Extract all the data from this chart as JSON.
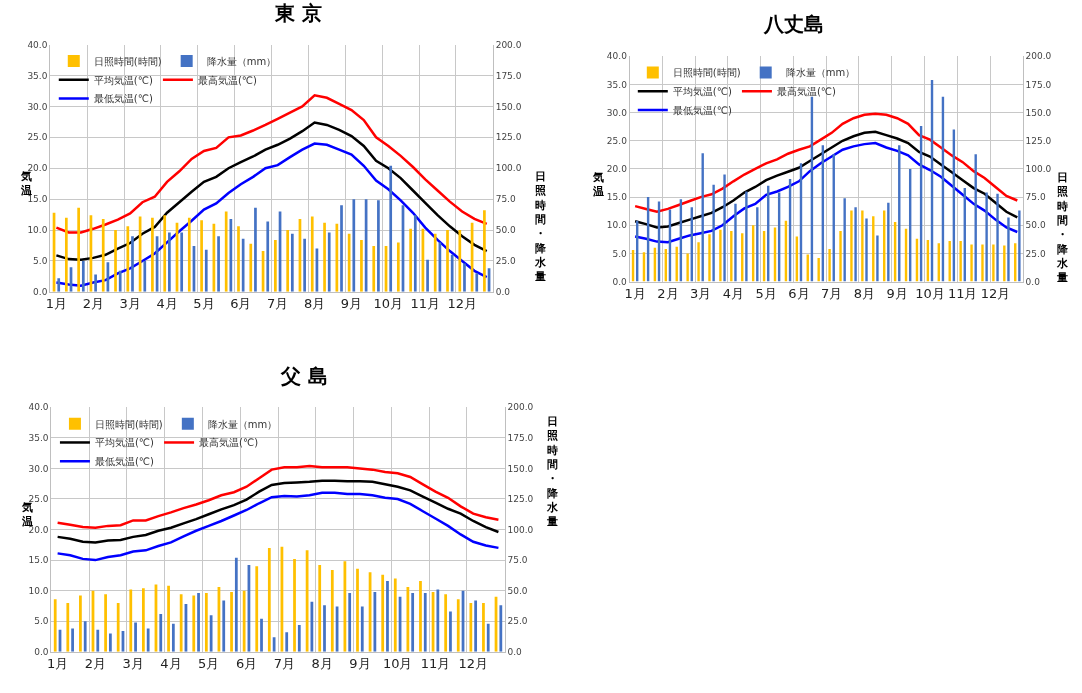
{
  "chart_data": [
    {
      "type": "bar",
      "title": "東 京",
      "ylabel": "気温",
      "y2label": "日照時間・降水量",
      "grid": true,
      "legend": "top left",
      "categories": [
        "1月",
        null,
        null,
        "2月",
        null,
        null,
        "3月",
        null,
        null,
        "4月",
        null,
        null,
        "5月",
        null,
        null,
        "6月",
        null,
        null,
        "7月",
        null,
        null,
        "8月",
        null,
        null,
        "9月",
        null,
        null,
        "10月",
        null,
        null,
        "11月",
        null,
        null,
        "12月",
        null,
        null
      ],
      "ylim": [
        0,
        40
      ],
      "yticks": [
        {
          "value": 0,
          "label": "0.0"
        },
        {
          "value": 5,
          "label": "5.0"
        },
        {
          "value": 10,
          "label": "10.0"
        },
        {
          "value": 15,
          "label": "15.0"
        },
        {
          "value": 20,
          "label": "20.0"
        },
        {
          "value": 25,
          "label": "25.0"
        },
        {
          "value": 30,
          "label": "30.0"
        },
        {
          "value": 35,
          "label": "35.0"
        },
        {
          "value": 40,
          "label": "40.0"
        }
      ],
      "y2lim": [
        0,
        200
      ],
      "y2ticks": [
        {
          "value": 0,
          "label": "0.0"
        },
        {
          "value": 25,
          "label": "25.0"
        },
        {
          "value": 50,
          "label": "50.0"
        },
        {
          "value": 75,
          "label": "75.0"
        },
        {
          "value": 100,
          "label": "100.0"
        },
        {
          "value": 125,
          "label": "125.0"
        },
        {
          "value": 150,
          "label": "150.0"
        },
        {
          "value": 175,
          "label": "175.0"
        },
        {
          "value": 200,
          "label": "200.0"
        }
      ],
      "series": [
        {
          "name": "日照時間(時間)",
          "axis": "y2",
          "color": "#ffc000",
          "values": [
            64,
            60,
            68,
            62,
            59,
            50,
            53,
            61,
            60,
            62,
            56,
            60,
            58,
            55,
            65,
            53,
            39,
            33,
            42,
            50,
            59,
            61,
            56,
            55,
            47,
            42,
            37,
            37,
            40,
            51,
            51,
            47,
            50,
            50,
            56,
            66
          ]
        },
        {
          "name": "降水量（mm）",
          "axis": "y2",
          "color": "#4472c4",
          "values": [
            11,
            20,
            25,
            14,
            24,
            17,
            45,
            25,
            45,
            48,
            48,
            37,
            34,
            45,
            59,
            43,
            68,
            57,
            65,
            47,
            43,
            35,
            48,
            70,
            75,
            75,
            74,
            102,
            70,
            62,
            26,
            40,
            30,
            23,
            15,
            19
          ]
        },
        {
          "name": "平均気温(℃)",
          "type": "line",
          "color": "#000000",
          "values": [
            5.9,
            5.3,
            5.2,
            5.5,
            6.0,
            7.0,
            7.9,
            9.4,
            10.5,
            12.8,
            14.5,
            16.2,
            17.8,
            18.6,
            20.0,
            21.0,
            21.9,
            23.0,
            23.8,
            24.8,
            26,
            27.4,
            27,
            26.2,
            25.2,
            23.6,
            21.2,
            20,
            18.4,
            16.4,
            14.4,
            12.4,
            10.6,
            9,
            7.6,
            6.6
          ]
        },
        {
          "name": "最高気温(℃)",
          "type": "line",
          "color": "#ff0000",
          "values": [
            10.4,
            9.6,
            9.6,
            10.2,
            10.9,
            11.7,
            12.7,
            14.5,
            15.4,
            17.8,
            19.5,
            21.5,
            22.8,
            23.3,
            25.0,
            25.3,
            26.1,
            27.0,
            28.0,
            29.0,
            30,
            31.8,
            31.4,
            30.4,
            29.4,
            27.8,
            25,
            23.6,
            22,
            20.2,
            18.2,
            16.4,
            14.6,
            13,
            11.8,
            11
          ]
        },
        {
          "name": "最低気温(℃)",
          "type": "line",
          "color": "#0000ff",
          "values": [
            1.5,
            1.2,
            1.0,
            1.5,
            1.9,
            3.0,
            3.8,
            5.0,
            6.2,
            8.0,
            9.8,
            11.5,
            13.3,
            14.3,
            16.0,
            17.4,
            18.6,
            20.0,
            20.5,
            21.8,
            23,
            24,
            23.8,
            23,
            22.2,
            20.4,
            18,
            16.6,
            14.8,
            12.8,
            10.4,
            8.4,
            6.6,
            5,
            3.4,
            2.4
          ]
        }
      ]
    },
    {
      "type": "bar",
      "title": "八丈島",
      "ylabel": "気温",
      "y2label": "日照時間・降水量",
      "grid": true,
      "legend": "top left",
      "categories": [
        "1月",
        null,
        null,
        "2月",
        null,
        null,
        "3月",
        null,
        null,
        "4月",
        null,
        null,
        "5月",
        null,
        null,
        "6月",
        null,
        null,
        "7月",
        null,
        null,
        "8月",
        null,
        null,
        "9月",
        null,
        null,
        "10月",
        null,
        null,
        "11月",
        null,
        null,
        "12月",
        null,
        null
      ],
      "ylim": [
        0,
        40
      ],
      "yticks": [
        {
          "value": 0,
          "label": "0.0"
        },
        {
          "value": 5,
          "label": "5.0"
        },
        {
          "value": 10,
          "label": "10.0"
        },
        {
          "value": 15,
          "label": "15.0"
        },
        {
          "value": 20,
          "label": "20.0"
        },
        {
          "value": 25,
          "label": "25.0"
        },
        {
          "value": 30,
          "label": "30.0"
        },
        {
          "value": 35,
          "label": "35.0"
        },
        {
          "value": 40,
          "label": "40.0"
        }
      ],
      "y2lim": [
        0,
        200
      ],
      "y2ticks": [
        {
          "value": 0,
          "label": "0.0"
        },
        {
          "value": 25,
          "label": "25.0"
        },
        {
          "value": 50,
          "label": "50.0"
        },
        {
          "value": 75,
          "label": "75.0"
        },
        {
          "value": 100,
          "label": "100.0"
        },
        {
          "value": 125,
          "label": "125.0"
        },
        {
          "value": 150,
          "label": "150.0"
        },
        {
          "value": 175,
          "label": "175.0"
        },
        {
          "value": 200,
          "label": "200.0"
        }
      ],
      "series": [
        {
          "name": "日照時間(時間)",
          "axis": "y2",
          "color": "#ffc000",
          "values": [
            28,
            26,
            30,
            29,
            31,
            25,
            35,
            42,
            46,
            45,
            43,
            50,
            45,
            48,
            54,
            40,
            24,
            21,
            29,
            45,
            63,
            63,
            58,
            63,
            53,
            47,
            38,
            37,
            34,
            36,
            36,
            33,
            33,
            33,
            32,
            34
          ]
        },
        {
          "name": "降水量（mm）",
          "axis": "y2",
          "color": "#4472c4",
          "values": [
            54,
            75,
            71,
            64,
            73,
            66,
            114,
            86,
            95,
            69,
            80,
            66,
            85,
            79,
            91,
            105,
            164,
            121,
            113,
            74,
            66,
            56,
            41,
            70,
            121,
            100,
            138,
            179,
            164,
            135,
            83,
            113,
            79,
            78,
            57,
            63
          ]
        },
        {
          "name": "平均気温(℃)",
          "type": "line",
          "color": "#000000",
          "values": [
            10.7,
            10.2,
            9.6,
            9.8,
            10.4,
            11.0,
            11.6,
            12.2,
            13.2,
            14.4,
            15.8,
            16.8,
            18.0,
            18.8,
            19.5,
            20.2,
            21.4,
            22.6,
            23.8,
            25,
            25.8,
            26.4,
            26.6,
            26,
            25.4,
            24.6,
            23,
            22.2,
            20.8,
            19.4,
            18,
            16.6,
            15.6,
            14,
            12.4,
            11.4
          ]
        },
        {
          "name": "最高気温(℃)",
          "type": "line",
          "color": "#ff0000",
          "values": [
            13.4,
            12.9,
            12.4,
            12.9,
            13.6,
            14.3,
            15.0,
            15.5,
            16.5,
            17.8,
            19.0,
            20.0,
            21.0,
            21.7,
            22.7,
            23.4,
            24.0,
            25.2,
            26.4,
            28,
            29,
            29.6,
            29.8,
            29.6,
            29,
            28,
            26,
            25.2,
            23.8,
            22.4,
            21.2,
            19.6,
            18.4,
            16.8,
            15.2,
            14.4
          ]
        },
        {
          "name": "最低気温(℃)",
          "type": "line",
          "color": "#0000ff",
          "values": [
            8.0,
            7.6,
            7.1,
            7.0,
            7.6,
            8.2,
            8.6,
            9.0,
            10.0,
            11.6,
            13.0,
            13.8,
            15.4,
            16.0,
            16.8,
            17.8,
            19.6,
            21.0,
            22.2,
            23.4,
            24,
            24.4,
            24.6,
            23.8,
            23.2,
            22.4,
            20.8,
            19.8,
            18.6,
            17,
            15.4,
            13.8,
            12.6,
            11,
            9.6,
            8.8
          ]
        }
      ]
    },
    {
      "type": "bar",
      "title": "父 島",
      "ylabel": "気温",
      "y2label": "日照時間・降水量",
      "grid": true,
      "legend": "top left",
      "categories": [
        "1月",
        null,
        null,
        "2月",
        null,
        null,
        "3月",
        null,
        null,
        "4月",
        null,
        null,
        "5月",
        null,
        null,
        "6月",
        null,
        null,
        "7月",
        null,
        null,
        "8月",
        null,
        null,
        "9月",
        null,
        null,
        "10月",
        null,
        null,
        "11月",
        null,
        null,
        "12月",
        null,
        null
      ],
      "ylim": [
        0,
        40
      ],
      "yticks": [
        {
          "value": 0,
          "label": "0.0"
        },
        {
          "value": 5,
          "label": "5.0"
        },
        {
          "value": 10,
          "label": "10.0"
        },
        {
          "value": 15,
          "label": "15.0"
        },
        {
          "value": 20,
          "label": "20.0"
        },
        {
          "value": 25,
          "label": "25.0"
        },
        {
          "value": 30,
          "label": "30.0"
        },
        {
          "value": 35,
          "label": "35.0"
        },
        {
          "value": 40,
          "label": "40.0"
        }
      ],
      "y2lim": [
        0,
        200
      ],
      "y2ticks": [
        {
          "value": 0,
          "label": "0.0"
        },
        {
          "value": 25,
          "label": "25.0"
        },
        {
          "value": 50,
          "label": "50.0"
        },
        {
          "value": 75,
          "label": "75.0"
        },
        {
          "value": 100,
          "label": "100.0"
        },
        {
          "value": 125,
          "label": "125.0"
        },
        {
          "value": 150,
          "label": "150.0"
        },
        {
          "value": 175,
          "label": "175.0"
        },
        {
          "value": 200,
          "label": "200.0"
        }
      ],
      "series": [
        {
          "name": "日照時間(時間)",
          "axis": "y2",
          "color": "#ffc000",
          "values": [
            43,
            40,
            46,
            50,
            47,
            40,
            51,
            52,
            55,
            54,
            47,
            46,
            48,
            53,
            49,
            50,
            70,
            85,
            86,
            76,
            83,
            71,
            67,
            74,
            68,
            65,
            63,
            60,
            53,
            58,
            49,
            47,
            43,
            40,
            40,
            45
          ]
        },
        {
          "name": "降水量（mm）",
          "axis": "y2",
          "color": "#4472c4",
          "values": [
            18,
            19,
            25,
            18,
            15,
            17,
            24,
            19,
            31,
            23,
            39,
            48,
            30,
            42,
            77,
            71,
            27,
            12,
            16,
            22,
            41,
            38,
            37,
            48,
            37,
            49,
            58,
            45,
            48,
            48,
            51,
            33,
            50,
            42,
            23,
            38
          ]
        },
        {
          "name": "平均気温(℃)",
          "type": "line",
          "color": "#000000",
          "values": [
            18.8,
            18.5,
            18.0,
            17.9,
            18.2,
            18.3,
            18.8,
            19.1,
            19.8,
            20.3,
            21.0,
            21.7,
            22.5,
            23.3,
            24.0,
            24.9,
            26.2,
            27.3,
            27.6,
            27.7,
            27.8,
            28,
            28,
            27.9,
            27.9,
            27.8,
            27.4,
            27,
            26.4,
            25.4,
            24.4,
            23.4,
            22.6,
            21.4,
            20.4,
            19.6
          ]
        },
        {
          "name": "最高気温(℃)",
          "type": "line",
          "color": "#ff0000",
          "values": [
            21.1,
            20.8,
            20.4,
            20.3,
            20.6,
            20.7,
            21.5,
            21.5,
            22.2,
            22.8,
            23.5,
            24.1,
            24.8,
            25.6,
            26.1,
            27.0,
            28.4,
            29.8,
            30.2,
            30.2,
            30.4,
            30.2,
            30.2,
            30.2,
            30,
            29.8,
            29.4,
            29.2,
            28.6,
            27.4,
            26.2,
            25.2,
            23.8,
            22.6,
            22,
            21.6
          ]
        },
        {
          "name": "最低気温(℃)",
          "type": "line",
          "color": "#0000ff",
          "values": [
            16.1,
            15.8,
            15.2,
            15.0,
            15.5,
            15.8,
            16.4,
            16.6,
            17.3,
            17.9,
            18.9,
            19.8,
            20.6,
            21.4,
            22.3,
            23.2,
            24.3,
            25.3,
            25.5,
            25.4,
            25.6,
            26,
            26,
            25.8,
            25.8,
            25.6,
            25.2,
            25,
            24.2,
            23,
            21.8,
            20.6,
            19.2,
            18,
            17.4,
            17
          ]
        }
      ]
    }
  ]
}
